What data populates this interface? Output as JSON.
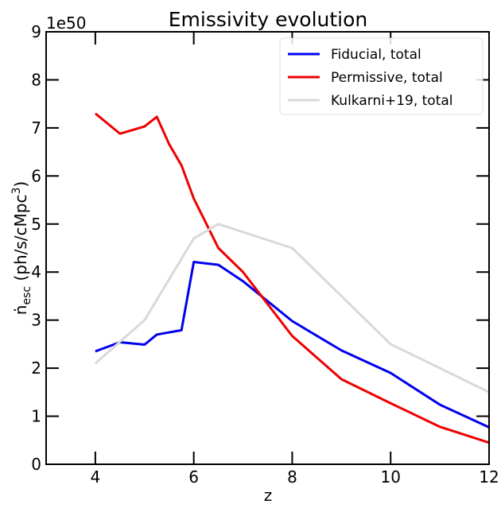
{
  "chart_data": {
    "type": "line",
    "title": "Emissivity evolution",
    "xlabel": "z",
    "ylabel": {
      "main": "ṅ",
      "sub": "esc",
      "middle": " (ph/s/cMpc",
      "sup": "3",
      "end": ")"
    },
    "offset_text": "1e50",
    "xlim": [
      3,
      12
    ],
    "xticks": [
      4,
      6,
      8,
      10,
      12
    ],
    "ylim": [
      0,
      9
    ],
    "yticks": [
      0,
      1,
      2,
      3,
      4,
      5,
      6,
      7,
      8,
      9
    ],
    "legend": "upper right",
    "series": [
      {
        "name": "Fiducial, total",
        "color": "#0000ee",
        "x": [
          4,
          4.5,
          5,
          5.25,
          5.75,
          6,
          6.5,
          7,
          8,
          9,
          10,
          11,
          12
        ],
        "values": [
          2.35,
          2.54,
          2.49,
          2.7,
          2.79,
          4.21,
          4.15,
          3.81,
          2.98,
          2.37,
          1.9,
          1.24,
          0.77
        ]
      },
      {
        "name": "Permissive, total",
        "color": "#ee0000",
        "x": [
          4,
          4.5,
          5,
          5.25,
          5.5,
          5.75,
          6,
          6.5,
          7,
          8,
          9,
          10,
          11,
          12
        ],
        "values": [
          7.3,
          6.88,
          7.03,
          7.23,
          6.66,
          6.22,
          5.53,
          4.5,
          4.0,
          2.67,
          1.77,
          1.27,
          0.78,
          0.45
        ]
      },
      {
        "name": "Kulkarni+19, total",
        "color": "#d9d9d9",
        "x": [
          4,
          5,
          6,
          6.5,
          8,
          10,
          12
        ],
        "values": [
          2.1,
          3.0,
          4.7,
          5.0,
          4.5,
          2.5,
          1.5
        ]
      }
    ]
  }
}
